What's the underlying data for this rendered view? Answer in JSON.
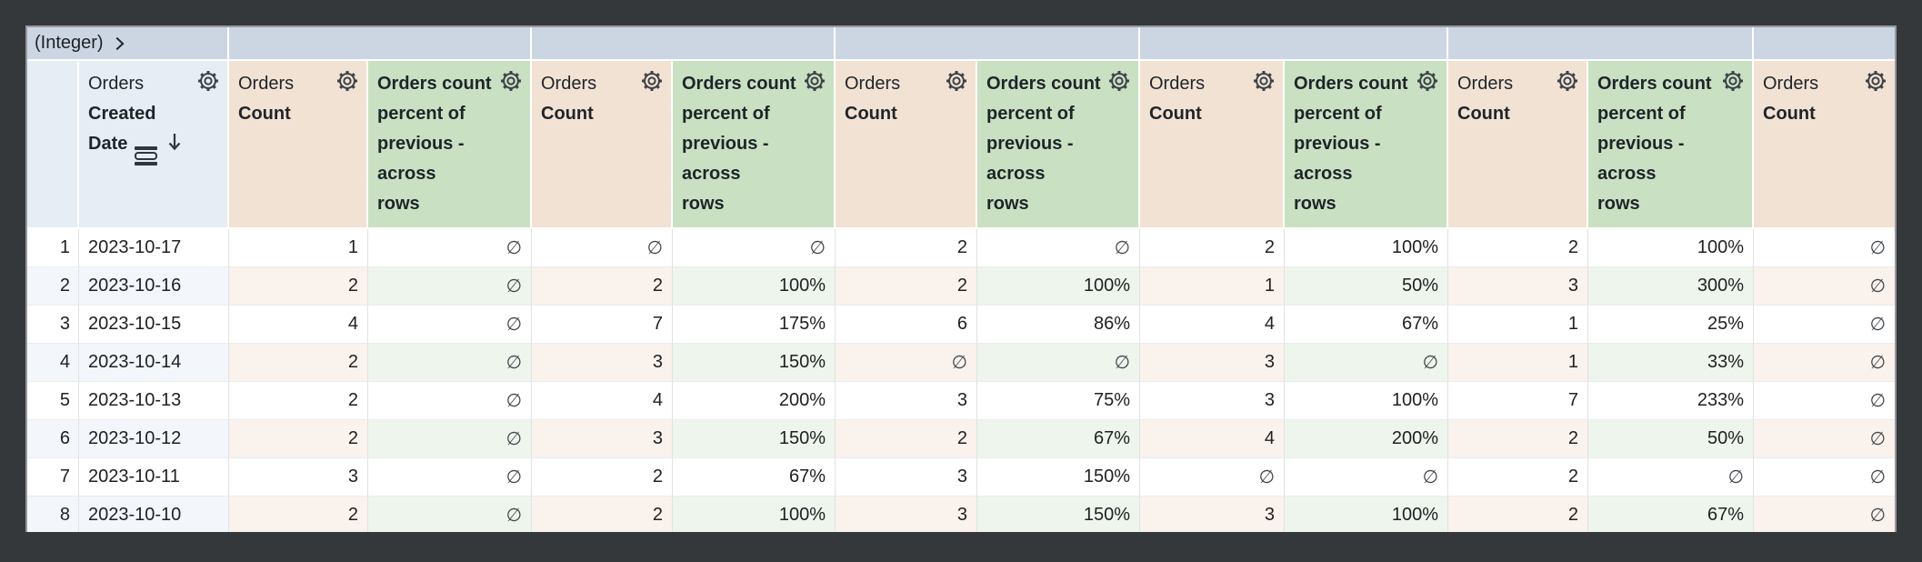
{
  "pivot_bar": {
    "label": "(Integer)",
    "chevron_icon": "chevron-right-icon"
  },
  "table": {
    "null_symbol": "∅",
    "columns": [
      {
        "id": "row-number",
        "kind": "row-number",
        "gear": false
      },
      {
        "id": "orders-created-date",
        "kind": "dimension",
        "view": "Orders",
        "field": "Created Date",
        "field_lines": [
          "Created",
          "Date"
        ],
        "sort": "descending",
        "icons": [
          "subtotal-icon",
          "sort-desc-arrow-icon"
        ],
        "gear": true
      },
      {
        "id": "orders-count-1",
        "kind": "measure",
        "view": "Orders",
        "field": "Count",
        "gear": true
      },
      {
        "id": "orders-count-percent-previous-1",
        "kind": "table-calculation",
        "label": "Orders count percent of previous - across rows",
        "label_lines": [
          "Orders count",
          "percent of",
          "previous -",
          "across",
          "rows"
        ],
        "gear": true
      },
      {
        "id": "orders-count-2",
        "kind": "measure",
        "view": "Orders",
        "field": "Count",
        "gear": true
      },
      {
        "id": "orders-count-percent-previous-2",
        "kind": "table-calculation",
        "label": "Orders count percent of previous - across rows",
        "label_lines": [
          "Orders count",
          "percent of",
          "previous -",
          "across",
          "rows"
        ],
        "gear": true
      },
      {
        "id": "orders-count-3",
        "kind": "measure",
        "view": "Orders",
        "field": "Count",
        "gear": true
      },
      {
        "id": "orders-count-percent-previous-3",
        "kind": "table-calculation",
        "label": "Orders count percent of previous - across rows",
        "label_lines": [
          "Orders count",
          "percent of",
          "previous -",
          "across",
          "rows"
        ],
        "gear": true
      },
      {
        "id": "orders-count-4",
        "kind": "measure",
        "view": "Orders",
        "field": "Count",
        "gear": true
      },
      {
        "id": "orders-count-percent-previous-4",
        "kind": "table-calculation",
        "label": "Orders count percent of previous - across rows",
        "label_lines": [
          "Orders count",
          "percent of",
          "previous -",
          "across",
          "rows"
        ],
        "gear": true
      },
      {
        "id": "orders-count-5",
        "kind": "measure",
        "view": "Orders",
        "field": "Count",
        "gear": true
      },
      {
        "id": "orders-count-percent-previous-5",
        "kind": "table-calculation",
        "label": "Orders count percent of previous - across rows",
        "label_lines": [
          "Orders count",
          "percent of",
          "previous -",
          "across",
          "rows"
        ],
        "gear": true
      },
      {
        "id": "orders-count-6",
        "kind": "measure",
        "view": "Orders",
        "field": "Count",
        "gear": true
      }
    ],
    "rows": [
      {
        "num": "1",
        "date": "2023-10-17",
        "values": [
          "1",
          "∅",
          "∅",
          "∅",
          "2",
          "∅",
          "2",
          "100%",
          "2",
          "100%",
          "∅"
        ]
      },
      {
        "num": "2",
        "date": "2023-10-16",
        "values": [
          "2",
          "∅",
          "2",
          "100%",
          "2",
          "100%",
          "1",
          "50%",
          "3",
          "300%",
          "∅"
        ]
      },
      {
        "num": "3",
        "date": "2023-10-15",
        "values": [
          "4",
          "∅",
          "7",
          "175%",
          "6",
          "86%",
          "4",
          "67%",
          "1",
          "25%",
          "∅"
        ]
      },
      {
        "num": "4",
        "date": "2023-10-14",
        "values": [
          "2",
          "∅",
          "3",
          "150%",
          "∅",
          "∅",
          "3",
          "∅",
          "1",
          "33%",
          "∅"
        ]
      },
      {
        "num": "5",
        "date": "2023-10-13",
        "values": [
          "2",
          "∅",
          "4",
          "200%",
          "3",
          "75%",
          "3",
          "100%",
          "7",
          "233%",
          "∅"
        ]
      },
      {
        "num": "6",
        "date": "2023-10-12",
        "values": [
          "2",
          "∅",
          "3",
          "150%",
          "2",
          "67%",
          "4",
          "200%",
          "2",
          "50%",
          "∅"
        ]
      },
      {
        "num": "7",
        "date": "2023-10-11",
        "values": [
          "3",
          "∅",
          "2",
          "67%",
          "3",
          "150%",
          "∅",
          "∅",
          "2",
          "∅",
          "∅"
        ]
      },
      {
        "num": "8",
        "date": "2023-10-10",
        "values": [
          "2",
          "∅",
          "2",
          "100%",
          "3",
          "150%",
          "3",
          "100%",
          "2",
          "67%",
          "∅"
        ]
      }
    ]
  },
  "colors": {
    "pivot_band": "#ccd6e3",
    "dimension_header": "#e7edf4",
    "measure_header": "#f2e2d3",
    "calculation_header": "#c9e1c2",
    "stripe_dimension": "#f3f6fa",
    "stripe_measure": "#faf2ec",
    "stripe_calculation": "#eef5ec",
    "cell_text": "#202124",
    "header_text": "#1f2429",
    "null_text": "#42474c"
  }
}
